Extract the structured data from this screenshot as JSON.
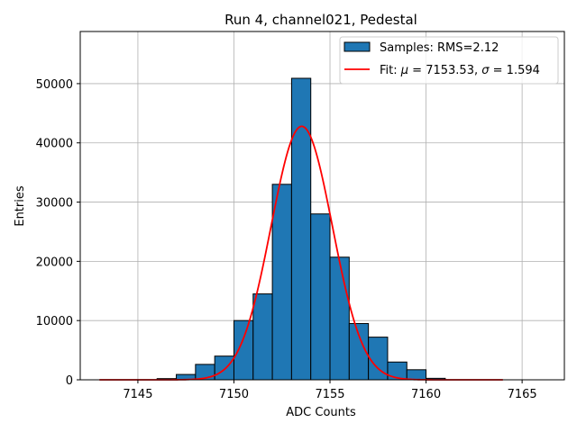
{
  "chart_data": {
    "type": "bar",
    "title": "Run 4, channel021, Pedestal",
    "xlabel": "ADC Counts",
    "ylabel": "Entries",
    "xlim": [
      7142.0,
      7167.2
    ],
    "ylim": [
      0,
      58800
    ],
    "xticks": [
      7145,
      7150,
      7155,
      7160,
      7165
    ],
    "yticks": [
      0,
      10000,
      20000,
      30000,
      40000,
      50000
    ],
    "grid": true,
    "legend_position": "top-right",
    "colors": {
      "bars": "#1f77b4",
      "fit": "#ff0000"
    },
    "histogram": {
      "name": "Samples: RMS=2.12",
      "bins": [
        {
          "x0": 7143,
          "x1": 7144,
          "count": 0
        },
        {
          "x0": 7144,
          "x1": 7145,
          "count": 0
        },
        {
          "x0": 7145,
          "x1": 7146,
          "count": 0
        },
        {
          "x0": 7146,
          "x1": 7147,
          "count": 200
        },
        {
          "x0": 7147,
          "x1": 7148,
          "count": 900
        },
        {
          "x0": 7148,
          "x1": 7149,
          "count": 2600
        },
        {
          "x0": 7149,
          "x1": 7150,
          "count": 4000
        },
        {
          "x0": 7150,
          "x1": 7151,
          "count": 10000
        },
        {
          "x0": 7151,
          "x1": 7152,
          "count": 14500
        },
        {
          "x0": 7152,
          "x1": 7153,
          "count": 33000
        },
        {
          "x0": 7153,
          "x1": 7154,
          "count": 50900
        },
        {
          "x0": 7154,
          "x1": 7155,
          "count": 28000
        },
        {
          "x0": 7155,
          "x1": 7156,
          "count": 20700
        },
        {
          "x0": 7156,
          "x1": 7157,
          "count": 9500
        },
        {
          "x0": 7157,
          "x1": 7158,
          "count": 7200
        },
        {
          "x0": 7158,
          "x1": 7159,
          "count": 3000
        },
        {
          "x0": 7159,
          "x1": 7160,
          "count": 1700
        },
        {
          "x0": 7160,
          "x1": 7161,
          "count": 250
        },
        {
          "x0": 7161,
          "x1": 7162,
          "count": 0
        },
        {
          "x0": 7162,
          "x1": 7163,
          "count": 0
        },
        {
          "x0": 7163,
          "x1": 7164,
          "count": 0
        }
      ]
    },
    "fit": {
      "name": "Fit: μ = 7153.53, σ = 1.594",
      "label_prefix": "Fit: ",
      "mu_symbol": "μ",
      "sigma_symbol": "σ",
      "mu": 7153.53,
      "sigma": 1.594,
      "amplitude": 42800,
      "x_range": [
        7143,
        7164
      ]
    }
  }
}
